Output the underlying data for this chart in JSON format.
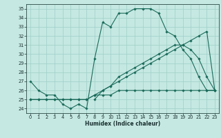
{
  "xlabel": "Humidex (Indice chaleur)",
  "bg_color": "#c5e8e2",
  "grid_color": "#9ecfc7",
  "line_color": "#1a6b5a",
  "xlim": [
    -0.5,
    23.5
  ],
  "ylim": [
    23.5,
    35.5
  ],
  "xticks": [
    0,
    1,
    2,
    3,
    4,
    5,
    6,
    7,
    8,
    9,
    10,
    11,
    12,
    13,
    14,
    15,
    16,
    17,
    18,
    19,
    20,
    21,
    22,
    23
  ],
  "yticks": [
    24,
    25,
    26,
    27,
    28,
    29,
    30,
    31,
    32,
    33,
    34,
    35
  ],
  "line1_x": [
    0,
    1,
    2,
    3,
    4,
    5,
    6,
    7,
    8,
    9,
    10,
    11,
    12,
    13,
    14,
    15,
    16,
    17,
    18,
    19,
    20,
    21,
    22,
    23
  ],
  "line1_y": [
    27,
    26,
    25.5,
    25.5,
    24.5,
    24,
    24.5,
    24,
    29.5,
    33.5,
    33,
    34.5,
    34.5,
    35,
    35,
    35,
    34.5,
    32.5,
    32,
    30.5,
    29.5,
    27.5,
    26,
    26
  ],
  "line2_x": [
    0,
    1,
    2,
    3,
    4,
    5,
    6,
    7,
    8,
    9,
    10,
    11,
    12,
    13,
    14,
    15,
    16,
    17,
    18,
    19,
    20,
    21,
    22,
    23
  ],
  "line2_y": [
    25,
    25,
    25,
    25,
    25,
    25,
    25,
    25,
    25.5,
    26,
    26.5,
    27,
    27.5,
    28,
    28.5,
    29,
    29.5,
    30,
    30.5,
    31,
    31.5,
    32,
    32.5,
    26
  ],
  "line3_x": [
    0,
    1,
    2,
    3,
    4,
    5,
    6,
    7,
    8,
    9,
    10,
    11,
    12,
    13,
    14,
    15,
    16,
    17,
    18,
    19,
    20,
    21,
    22,
    23
  ],
  "line3_y": [
    25,
    25,
    25,
    25,
    25,
    25,
    25,
    25,
    25.5,
    25.5,
    25.5,
    26,
    26,
    26,
    26,
    26,
    26,
    26,
    26,
    26,
    26,
    26,
    26,
    26
  ],
  "line4_x": [
    8,
    9,
    10,
    11,
    12,
    13,
    14,
    15,
    16,
    17,
    18,
    19,
    20,
    21,
    22,
    23
  ],
  "line4_y": [
    25,
    26,
    26.5,
    27.5,
    28,
    28.5,
    29,
    29.5,
    30,
    30.5,
    31,
    31,
    30.5,
    29.5,
    27.5,
    26
  ]
}
